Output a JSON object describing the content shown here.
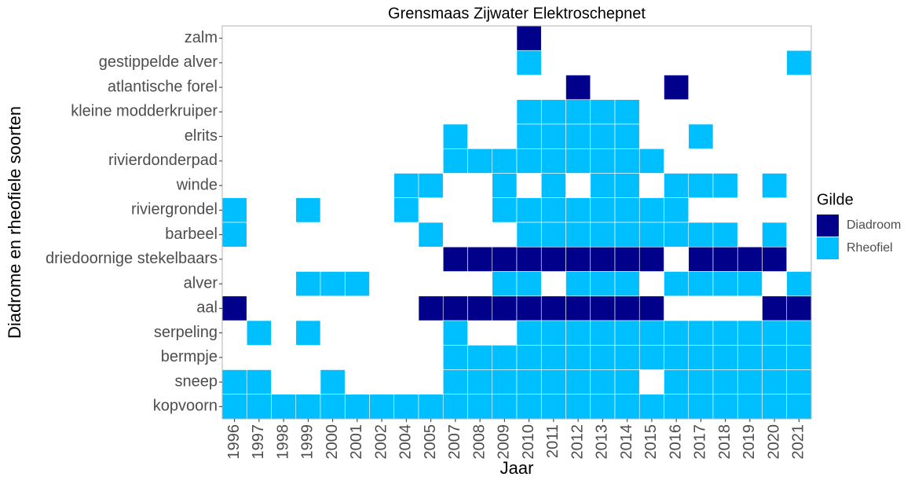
{
  "chart_data": {
    "type": "tile",
    "title": "Grensmaas Zijwater Elektroschepnet",
    "x_label": "Jaar",
    "y_label": "Diadrome en rheofiele soorten",
    "legend_title": "Gilde",
    "legend": "right",
    "x": [
      "1996",
      "1997",
      "1998",
      "1999",
      "2000",
      "2001",
      "2002",
      "2004",
      "2005",
      "2007",
      "2008",
      "2009",
      "2010",
      "2011",
      "2012",
      "2013",
      "2014",
      "2015",
      "2016",
      "2017",
      "2018",
      "2019",
      "2020",
      "2021"
    ],
    "categories": [
      "zalm",
      "gestippelde alver",
      "atlantische forel",
      "kleine modderkruiper",
      "elrits",
      "rivierdonderpad",
      "winde",
      "riviergrondel",
      "barbeel",
      "driedoornige stekelbaars",
      "alver",
      "aal",
      "serpeling",
      "bermpje",
      "sneep",
      "kopvoorn"
    ],
    "series": [
      {
        "name": "Diadroom",
        "color": "#00008b",
        "values": [
          [
            null,
            null,
            null,
            null,
            null,
            null,
            null,
            null,
            null,
            null,
            null,
            null,
            1,
            null,
            null,
            null,
            null,
            null,
            null,
            null,
            null,
            null,
            null,
            null
          ],
          [
            null,
            null,
            null,
            null,
            null,
            null,
            null,
            null,
            null,
            null,
            null,
            null,
            null,
            null,
            null,
            null,
            null,
            null,
            null,
            null,
            null,
            null,
            null,
            null
          ],
          [
            null,
            null,
            null,
            null,
            null,
            null,
            null,
            null,
            null,
            null,
            null,
            null,
            null,
            null,
            1,
            null,
            null,
            null,
            1,
            null,
            null,
            null,
            null,
            null
          ],
          [
            null,
            null,
            null,
            null,
            null,
            null,
            null,
            null,
            null,
            null,
            null,
            null,
            null,
            null,
            null,
            null,
            null,
            null,
            null,
            null,
            null,
            null,
            null,
            null
          ],
          [
            null,
            null,
            null,
            null,
            null,
            null,
            null,
            null,
            null,
            null,
            null,
            null,
            null,
            null,
            null,
            null,
            null,
            null,
            null,
            null,
            null,
            null,
            null,
            null
          ],
          [
            null,
            null,
            null,
            null,
            null,
            null,
            null,
            null,
            null,
            null,
            null,
            null,
            null,
            null,
            null,
            null,
            null,
            null,
            null,
            null,
            null,
            null,
            null,
            null
          ],
          [
            null,
            null,
            null,
            null,
            null,
            null,
            null,
            null,
            null,
            null,
            null,
            null,
            null,
            null,
            null,
            null,
            null,
            null,
            null,
            null,
            null,
            null,
            null,
            null
          ],
          [
            null,
            null,
            null,
            null,
            null,
            null,
            null,
            null,
            null,
            null,
            null,
            null,
            null,
            null,
            null,
            null,
            null,
            null,
            null,
            null,
            null,
            null,
            null,
            null
          ],
          [
            null,
            null,
            null,
            null,
            null,
            null,
            null,
            null,
            null,
            null,
            null,
            null,
            null,
            null,
            null,
            null,
            null,
            null,
            null,
            null,
            null,
            null,
            null,
            null
          ],
          [
            null,
            null,
            null,
            null,
            null,
            null,
            null,
            null,
            null,
            1,
            1,
            1,
            1,
            1,
            1,
            1,
            1,
            1,
            null,
            1,
            1,
            1,
            1,
            null
          ],
          [
            null,
            null,
            null,
            null,
            null,
            null,
            null,
            null,
            null,
            null,
            null,
            null,
            null,
            null,
            null,
            null,
            null,
            null,
            null,
            null,
            null,
            null,
            null,
            null
          ],
          [
            1,
            null,
            null,
            null,
            null,
            null,
            null,
            null,
            1,
            1,
            1,
            1,
            1,
            1,
            1,
            1,
            1,
            1,
            null,
            null,
            null,
            null,
            1,
            1
          ],
          [
            null,
            null,
            null,
            null,
            null,
            null,
            null,
            null,
            null,
            null,
            null,
            null,
            null,
            null,
            null,
            null,
            null,
            null,
            null,
            null,
            null,
            null,
            null,
            null
          ],
          [
            null,
            null,
            null,
            null,
            null,
            null,
            null,
            null,
            null,
            null,
            null,
            null,
            null,
            null,
            null,
            null,
            null,
            null,
            null,
            null,
            null,
            null,
            null,
            null
          ],
          [
            null,
            null,
            null,
            null,
            null,
            null,
            null,
            null,
            null,
            null,
            null,
            null,
            null,
            null,
            null,
            null,
            null,
            null,
            null,
            null,
            null,
            null,
            null,
            null
          ],
          [
            null,
            null,
            null,
            null,
            null,
            null,
            null,
            null,
            null,
            null,
            null,
            null,
            null,
            null,
            null,
            null,
            null,
            null,
            null,
            null,
            null,
            null,
            null,
            null
          ]
        ]
      },
      {
        "name": "Rheofiel",
        "color": "#00bfff",
        "values": [
          [
            null,
            null,
            null,
            null,
            null,
            null,
            null,
            null,
            null,
            null,
            null,
            null,
            null,
            null,
            null,
            null,
            null,
            null,
            null,
            null,
            null,
            null,
            null,
            null
          ],
          [
            null,
            null,
            null,
            null,
            null,
            null,
            null,
            null,
            null,
            null,
            null,
            null,
            1,
            null,
            null,
            null,
            null,
            null,
            null,
            null,
            null,
            null,
            null,
            1
          ],
          [
            null,
            null,
            null,
            null,
            null,
            null,
            null,
            null,
            null,
            null,
            null,
            null,
            null,
            null,
            null,
            null,
            null,
            null,
            null,
            null,
            null,
            null,
            null,
            null
          ],
          [
            null,
            null,
            null,
            null,
            null,
            null,
            null,
            null,
            null,
            null,
            null,
            null,
            1,
            1,
            1,
            1,
            1,
            null,
            null,
            null,
            null,
            null,
            null,
            null
          ],
          [
            null,
            null,
            null,
            null,
            null,
            null,
            null,
            null,
            null,
            1,
            null,
            null,
            1,
            1,
            1,
            1,
            1,
            null,
            null,
            1,
            null,
            null,
            null,
            null
          ],
          [
            null,
            null,
            null,
            null,
            null,
            null,
            null,
            null,
            null,
            1,
            1,
            1,
            1,
            1,
            1,
            1,
            1,
            1,
            null,
            null,
            null,
            null,
            null,
            null
          ],
          [
            null,
            null,
            null,
            null,
            null,
            null,
            null,
            1,
            1,
            null,
            null,
            1,
            null,
            1,
            null,
            1,
            1,
            null,
            1,
            1,
            1,
            null,
            1,
            null
          ],
          [
            1,
            null,
            null,
            1,
            null,
            null,
            null,
            1,
            null,
            null,
            null,
            1,
            1,
            1,
            1,
            1,
            1,
            1,
            1,
            null,
            null,
            null,
            null,
            null
          ],
          [
            1,
            null,
            null,
            null,
            null,
            null,
            null,
            null,
            1,
            null,
            null,
            null,
            1,
            1,
            1,
            1,
            1,
            1,
            1,
            1,
            1,
            null,
            1,
            null
          ],
          [
            null,
            null,
            null,
            null,
            null,
            null,
            null,
            null,
            null,
            null,
            null,
            null,
            null,
            null,
            null,
            null,
            null,
            null,
            null,
            null,
            null,
            null,
            null,
            null
          ],
          [
            null,
            null,
            null,
            1,
            1,
            1,
            null,
            null,
            null,
            null,
            null,
            1,
            1,
            null,
            1,
            1,
            1,
            null,
            1,
            1,
            1,
            1,
            null,
            1
          ],
          [
            null,
            null,
            null,
            null,
            null,
            null,
            null,
            null,
            null,
            null,
            null,
            null,
            null,
            null,
            null,
            null,
            null,
            null,
            null,
            null,
            null,
            null,
            null,
            null
          ],
          [
            null,
            1,
            null,
            1,
            null,
            null,
            null,
            null,
            null,
            1,
            null,
            null,
            1,
            1,
            1,
            1,
            1,
            1,
            1,
            1,
            1,
            1,
            1,
            1
          ],
          [
            null,
            null,
            null,
            null,
            null,
            null,
            null,
            null,
            null,
            1,
            1,
            1,
            1,
            1,
            1,
            1,
            1,
            1,
            1,
            1,
            1,
            1,
            1,
            1
          ],
          [
            1,
            1,
            null,
            null,
            1,
            null,
            null,
            null,
            null,
            1,
            1,
            1,
            1,
            1,
            1,
            1,
            1,
            null,
            1,
            1,
            1,
            1,
            1,
            1
          ],
          [
            1,
            1,
            1,
            1,
            1,
            1,
            1,
            1,
            1,
            1,
            1,
            1,
            1,
            1,
            1,
            1,
            1,
            1,
            1,
            1,
            1,
            1,
            1,
            1
          ]
        ]
      }
    ]
  }
}
